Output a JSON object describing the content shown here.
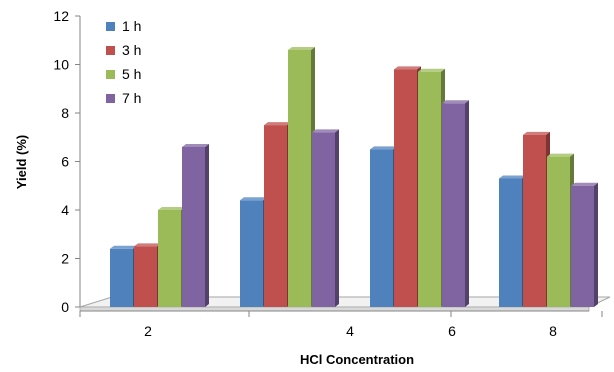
{
  "chart_data": {
    "type": "bar",
    "categories": [
      "2",
      "4",
      "6",
      "8"
    ],
    "series": [
      {
        "name": "1 h",
        "color": "#4F81BD",
        "values": [
          2.4,
          4.4,
          6.5,
          5.3
        ]
      },
      {
        "name": "3 h",
        "color": "#C0504D",
        "values": [
          2.5,
          7.5,
          9.8,
          7.1
        ]
      },
      {
        "name": "5 h",
        "color": "#9BBB59",
        "values": [
          4.0,
          10.6,
          9.7,
          6.2
        ]
      },
      {
        "name": "7 h",
        "color": "#8064A2",
        "values": [
          6.6,
          7.2,
          8.4,
          5.0
        ]
      }
    ],
    "xlabel": "HCl Concentration",
    "ylabel": "Yield (%)",
    "ylim": [
      0,
      12
    ],
    "yticks": [
      "0",
      "2",
      "4",
      "6",
      "8",
      "10",
      "12"
    ],
    "grid": false,
    "legend_position": "top-left",
    "style": "3d-clustered-column"
  }
}
